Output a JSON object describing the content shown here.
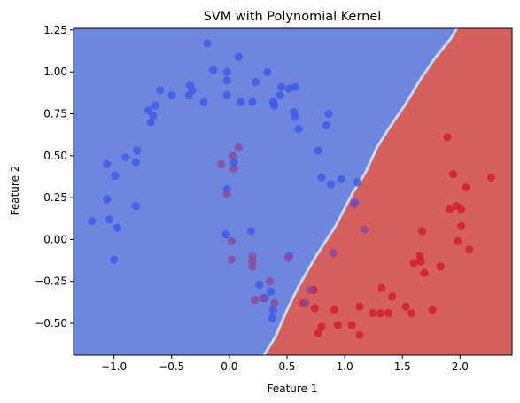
{
  "chart_data": {
    "type": "scatter",
    "title": "SVM with Polynomial Kernel",
    "xlabel": "Feature 1",
    "ylabel": "Feature 2",
    "xlim": [
      -1.35,
      2.45
    ],
    "ylim": [
      -0.69,
      1.26
    ],
    "x_ticks": [
      -1.0,
      -0.5,
      0.0,
      0.5,
      1.0,
      1.5,
      2.0
    ],
    "y_ticks": [
      -0.5,
      -0.25,
      0.0,
      0.25,
      0.5,
      0.75,
      1.0,
      1.25
    ],
    "x_tick_labels": [
      "−1.0",
      "−0.5",
      "0.0",
      "0.5",
      "1.0",
      "1.5",
      "2.0"
    ],
    "y_tick_labels": [
      "−0.50",
      "−0.25",
      "0.00",
      "0.25",
      "0.50",
      "0.75",
      "1.00",
      "1.25"
    ],
    "grid": false,
    "colors": {
      "region_class0": "#6f86de",
      "region_class1": "#d6605e",
      "point_class0": "#3f5ae8",
      "point_class1": "#cf1f2d",
      "point_misclassified_blue_on_red": "#8a4a9a",
      "boundary_light": "#c5dcf5"
    },
    "decision_boundary": [
      [
        0.3,
        -0.69
      ],
      [
        0.4,
        -0.58
      ],
      [
        0.5,
        -0.42
      ],
      [
        0.6,
        -0.28
      ],
      [
        0.75,
        -0.1
      ],
      [
        0.92,
        0.08
      ],
      [
        1.07,
        0.28
      ],
      [
        1.18,
        0.4
      ],
      [
        1.28,
        0.55
      ],
      [
        1.38,
        0.66
      ],
      [
        1.52,
        0.8
      ],
      [
        1.66,
        0.96
      ],
      [
        1.78,
        1.08
      ],
      [
        1.92,
        1.2
      ],
      [
        1.97,
        1.26
      ]
    ],
    "series": [
      {
        "class": 0,
        "points": [
          [
            -1.19,
            0.11
          ],
          [
            -1.06,
            0.45
          ],
          [
            -1.06,
            0.24
          ],
          [
            -1.04,
            0.12
          ],
          [
            -1.0,
            -0.12
          ],
          [
            -0.99,
            0.38
          ],
          [
            -0.97,
            0.07
          ],
          [
            -0.9,
            0.49
          ],
          [
            -0.81,
            0.46
          ],
          [
            -0.8,
            0.53
          ],
          [
            -0.81,
            0.2
          ],
          [
            -0.7,
            0.77
          ],
          [
            -0.68,
            0.7
          ],
          [
            -0.66,
            0.74
          ],
          [
            -0.64,
            0.8
          ],
          [
            -0.6,
            0.89
          ],
          [
            -0.5,
            0.86
          ],
          [
            -0.35,
            0.86
          ],
          [
            -0.34,
            0.92
          ],
          [
            -0.32,
            0.89
          ],
          [
            -0.22,
            0.82
          ],
          [
            -0.19,
            1.17
          ],
          [
            -0.14,
            1.01
          ],
          [
            -0.02,
            1.0
          ],
          [
            -0.02,
            0.95
          ],
          [
            -0.02,
            0.86
          ],
          [
            0.08,
            1.09
          ],
          [
            0.1,
            0.82
          ],
          [
            0.23,
            0.94
          ],
          [
            0.2,
            0.82
          ],
          [
            0.33,
            1.0
          ],
          [
            0.38,
            0.82
          ],
          [
            0.39,
            0.8
          ],
          [
            0.44,
            0.86
          ],
          [
            0.45,
            0.91
          ],
          [
            0.52,
            0.9
          ],
          [
            0.57,
            0.91
          ],
          [
            0.56,
            0.76
          ],
          [
            0.57,
            0.73
          ],
          [
            0.6,
            0.66
          ],
          [
            0.77,
            0.53
          ],
          [
            0.84,
            0.68
          ],
          [
            0.86,
            0.75
          ],
          [
            0.8,
            0.37
          ],
          [
            0.88,
            0.33
          ],
          [
            0.97,
            0.36
          ],
          [
            1.11,
            0.34
          ],
          [
            1.09,
            0.22
          ],
          [
            0.04,
            0.46
          ],
          [
            -0.02,
            0.3
          ],
          [
            -0.03,
            0.03
          ],
          [
            0.19,
            0.05
          ],
          [
            0.31,
            -0.35
          ],
          [
            0.36,
            -0.31
          ],
          [
            0.38,
            -0.42
          ],
          [
            0.37,
            -0.47
          ],
          [
            0.52,
            -0.1
          ],
          [
            0.26,
            -0.27
          ]
        ]
      },
      {
        "class": 1,
        "points": [
          [
            0.64,
            -0.38
          ],
          [
            0.73,
            -0.3
          ],
          [
            0.74,
            -0.41
          ],
          [
            0.77,
            -0.56
          ],
          [
            0.8,
            -0.52
          ],
          [
            0.91,
            -0.42
          ],
          [
            0.94,
            -0.51
          ],
          [
            1.06,
            -0.51
          ],
          [
            1.13,
            -0.4
          ],
          [
            1.13,
            -0.57
          ],
          [
            1.24,
            -0.44
          ],
          [
            1.32,
            -0.29
          ],
          [
            1.31,
            -0.44
          ],
          [
            1.41,
            -0.34
          ],
          [
            1.38,
            -0.44
          ],
          [
            1.53,
            -0.4
          ],
          [
            1.58,
            -0.44
          ],
          [
            1.6,
            -0.14
          ],
          [
            1.65,
            -0.1
          ],
          [
            1.66,
            -0.13
          ],
          [
            1.69,
            -0.2
          ],
          [
            1.76,
            -0.42
          ],
          [
            1.83,
            -0.16
          ],
          [
            1.89,
            0.61
          ],
          [
            1.94,
            0.39
          ],
          [
            1.97,
            0.2
          ],
          [
            2.01,
            0.18
          ],
          [
            2.01,
            0.08
          ],
          [
            2.05,
            0.31
          ],
          [
            1.91,
            0.18
          ],
          [
            1.98,
            -0.01
          ],
          [
            2.08,
            -0.06
          ],
          [
            2.27,
            0.37
          ],
          [
            1.67,
            0.05
          ]
        ]
      },
      {
        "class": "class0-in-class1-region",
        "points": [
          [
            -0.07,
            0.45
          ],
          [
            0.04,
            0.42
          ],
          [
            0.03,
            0.5
          ],
          [
            0.08,
            0.55
          ],
          [
            -0.02,
            0.27
          ],
          [
            0.02,
            -0.01
          ],
          [
            0.02,
            -0.12
          ],
          [
            0.2,
            -0.1
          ],
          [
            0.2,
            -0.13
          ],
          [
            0.2,
            -0.16
          ],
          [
            0.22,
            -0.36
          ],
          [
            0.35,
            -0.25
          ],
          [
            0.39,
            -0.38
          ],
          [
            0.51,
            -0.11
          ],
          [
            0.66,
            -0.38
          ],
          [
            0.7,
            -0.3
          ],
          [
            0.9,
            -0.08
          ],
          [
            1.17,
            0.06
          ],
          [
            1.08,
            0.21
          ],
          [
            0.29,
            -0.35
          ]
        ]
      }
    ]
  }
}
